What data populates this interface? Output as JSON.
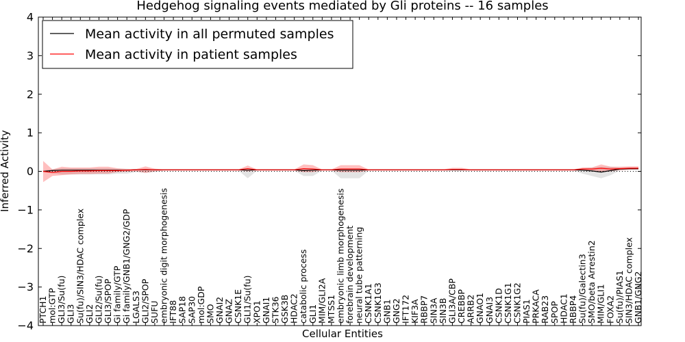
{
  "chart_data": {
    "type": "line",
    "title": "Hedgehog signaling events mediated by Gli proteins -- 16 samples",
    "xlabel": "Cellular Entities",
    "ylabel": "Inferred Activity",
    "ylim": [
      -4,
      4
    ],
    "yticks": [
      -4,
      -3,
      -2,
      -1,
      0,
      1,
      2,
      3,
      4
    ],
    "ytick_labels": [
      "−4",
      "−3",
      "−2",
      "−1",
      "0",
      "1",
      "2",
      "3",
      "4"
    ],
    "legend_position": "top-left",
    "categories": [
      "PTCH1",
      "mol:GTP",
      "GLI3/Su(fu)",
      "GLI3",
      "Su(fu)/SIN3/HDAC complex",
      "GLI2",
      "GLI2/Su(fu)",
      "GLI3/SPOP",
      "Gi family/GTP",
      "Gi family/GNB1/GNG2/GDP",
      "LGALS3",
      "GLI2/SPOP",
      "SUFU",
      "embryonic digit morphogenesis",
      "IFT88",
      "SAP18",
      "SAP30",
      "mol:GDP",
      "SMO",
      "GNAI2",
      "GNAZ",
      "CSNK1E",
      "GLI1/Su(fu)",
      "XPO1",
      "GNAI1",
      "STK36",
      "GSK3B",
      "HDAC2",
      "catabolic process",
      "GLI1",
      "MIM/GLI2A",
      "MTSS1",
      "embryonic limb morphogenesis",
      "forebrain development",
      "neural tube patterning",
      "CSNK1A1",
      "CSNK1G3",
      "GNB1",
      "GNG2",
      "IFT172",
      "KIF3A",
      "RBBP7",
      "SIN3A",
      "SIN3B",
      "GLI3A/CBP",
      "CREBBP",
      "ARRB2",
      "GNAO1",
      "GNAI3",
      "CSNK1D",
      "CSNK1G1",
      "CSNK1G2",
      "PIAS1",
      "PRKACA",
      "RAB23",
      "SPOP",
      "HDAC1",
      "RBBP4",
      "Su(fu)/Galectin3",
      "SMO/beta Arrestin2",
      "MIM/GLI1",
      "FOXA2",
      "Su(fu)/PIAS1",
      "SIN3/HDAC complex",
      "GNB1/GNG2"
    ],
    "series": [
      {
        "name": "Mean activity in all permuted samples",
        "color": "#000000",
        "values": [
          0.0,
          0.02,
          0.03,
          0.03,
          0.03,
          0.03,
          0.03,
          0.03,
          0.03,
          0.03,
          0.04,
          0.04,
          0.04,
          0.04,
          0.04,
          0.04,
          0.04,
          0.04,
          0.04,
          0.04,
          0.04,
          0.04,
          0.03,
          0.04,
          0.04,
          0.04,
          0.04,
          0.04,
          0.02,
          0.03,
          0.04,
          0.04,
          0.03,
          0.03,
          0.03,
          0.04,
          0.04,
          0.04,
          0.04,
          0.04,
          0.04,
          0.04,
          0.04,
          0.04,
          0.04,
          0.04,
          0.04,
          0.04,
          0.04,
          0.04,
          0.04,
          0.04,
          0.04,
          0.04,
          0.04,
          0.04,
          0.04,
          0.04,
          0.03,
          0.01,
          -0.02,
          0.02,
          0.06,
          0.07,
          0.07
        ],
        "lower": [
          -0.02,
          -0.05,
          -0.08,
          -0.08,
          -0.08,
          -0.08,
          -0.08,
          -0.08,
          -0.06,
          -0.06,
          -0.02,
          -0.04,
          -0.02,
          0.02,
          0.02,
          0.02,
          0.02,
          0.02,
          0.02,
          0.02,
          0.02,
          0.02,
          -0.18,
          0.02,
          0.02,
          0.02,
          0.02,
          0.02,
          -0.12,
          -0.12,
          0.02,
          0.02,
          -0.18,
          -0.18,
          -0.18,
          0.02,
          0.02,
          0.02,
          0.02,
          0.02,
          0.02,
          0.02,
          0.02,
          0.02,
          0.02,
          0.02,
          0.02,
          0.02,
          0.02,
          0.02,
          0.02,
          0.02,
          0.02,
          0.02,
          0.02,
          0.02,
          0.02,
          0.02,
          -0.06,
          -0.12,
          -0.18,
          -0.1,
          0.02,
          0.04,
          0.04
        ],
        "upper": [
          0.02,
          0.06,
          0.08,
          0.08,
          0.08,
          0.08,
          0.08,
          0.08,
          0.07,
          0.07,
          0.06,
          0.06,
          0.06,
          0.05,
          0.05,
          0.05,
          0.05,
          0.05,
          0.05,
          0.05,
          0.05,
          0.05,
          0.06,
          0.05,
          0.05,
          0.05,
          0.05,
          0.05,
          0.08,
          0.08,
          0.05,
          0.05,
          0.08,
          0.08,
          0.08,
          0.05,
          0.05,
          0.05,
          0.05,
          0.05,
          0.05,
          0.05,
          0.05,
          0.05,
          0.05,
          0.05,
          0.05,
          0.05,
          0.05,
          0.05,
          0.05,
          0.05,
          0.05,
          0.05,
          0.05,
          0.05,
          0.05,
          0.05,
          0.08,
          0.1,
          0.12,
          0.12,
          0.1,
          0.1,
          0.1
        ]
      },
      {
        "name": "Mean activity in patient samples",
        "color": "#ff0000",
        "values": [
          0.0,
          -0.03,
          0.0,
          0.0,
          0.01,
          0.01,
          0.02,
          0.02,
          0.02,
          0.03,
          0.04,
          0.05,
          0.04,
          0.04,
          0.04,
          0.04,
          0.04,
          0.04,
          0.04,
          0.04,
          0.04,
          0.04,
          0.07,
          0.04,
          0.04,
          0.04,
          0.04,
          0.04,
          0.07,
          0.06,
          0.04,
          0.04,
          0.06,
          0.06,
          0.06,
          0.04,
          0.04,
          0.04,
          0.04,
          0.04,
          0.04,
          0.04,
          0.04,
          0.04,
          0.05,
          0.05,
          0.04,
          0.04,
          0.04,
          0.04,
          0.04,
          0.04,
          0.04,
          0.04,
          0.04,
          0.04,
          0.04,
          0.04,
          0.06,
          0.06,
          0.08,
          0.06,
          0.07,
          0.08,
          0.08
        ],
        "lower": [
          -0.28,
          -0.12,
          -0.1,
          -0.08,
          -0.07,
          -0.07,
          -0.06,
          -0.06,
          -0.02,
          -0.01,
          0.0,
          -0.04,
          0.0,
          0.02,
          0.02,
          0.02,
          0.02,
          0.02,
          0.02,
          0.02,
          0.02,
          0.02,
          0.0,
          0.02,
          0.02,
          0.02,
          0.02,
          0.02,
          -0.02,
          -0.02,
          0.02,
          0.02,
          -0.02,
          -0.02,
          -0.02,
          0.02,
          0.02,
          0.02,
          0.02,
          0.02,
          0.02,
          0.02,
          0.02,
          0.02,
          0.02,
          0.02,
          0.02,
          0.02,
          0.02,
          0.02,
          0.02,
          0.02,
          0.02,
          0.02,
          0.02,
          0.02,
          0.02,
          0.02,
          0.02,
          0.0,
          -0.02,
          0.0,
          0.03,
          0.04,
          0.05
        ],
        "upper": [
          0.27,
          0.05,
          0.12,
          0.1,
          0.1,
          0.1,
          0.12,
          0.12,
          0.08,
          0.06,
          0.06,
          0.13,
          0.07,
          0.05,
          0.05,
          0.05,
          0.05,
          0.05,
          0.05,
          0.05,
          0.05,
          0.05,
          0.15,
          0.05,
          0.05,
          0.05,
          0.05,
          0.05,
          0.18,
          0.16,
          0.05,
          0.05,
          0.16,
          0.16,
          0.16,
          0.05,
          0.05,
          0.05,
          0.05,
          0.05,
          0.05,
          0.05,
          0.05,
          0.05,
          0.09,
          0.09,
          0.05,
          0.05,
          0.05,
          0.05,
          0.05,
          0.05,
          0.05,
          0.05,
          0.05,
          0.05,
          0.05,
          0.05,
          0.1,
          0.1,
          0.18,
          0.12,
          0.12,
          0.13,
          0.13
        ]
      }
    ],
    "reference_line": 0
  }
}
